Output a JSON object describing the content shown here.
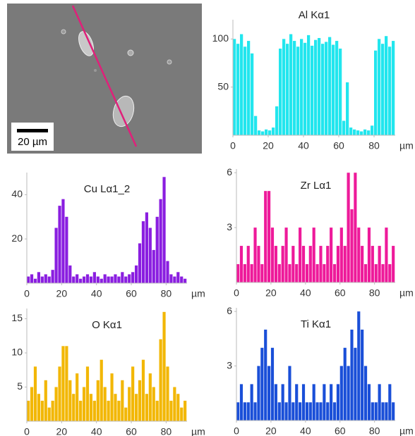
{
  "image": {
    "scale_label": "20 µm"
  },
  "chart_data": [
    {
      "type": "bar",
      "title": "Al Kα1",
      "color": "#22e6ee",
      "x_unit": "µm",
      "x": [
        0,
        2,
        4,
        6,
        8,
        10,
        12,
        14,
        16,
        18,
        20,
        22,
        24,
        26,
        28,
        30,
        32,
        34,
        36,
        38,
        40,
        42,
        44,
        46,
        48,
        50,
        52,
        54,
        56,
        58,
        60,
        62,
        64,
        66,
        68,
        70,
        72,
        74,
        76,
        78,
        80,
        82,
        84,
        86,
        88,
        90
      ],
      "values": [
        100,
        95,
        105,
        92,
        98,
        85,
        20,
        5,
        4,
        6,
        5,
        8,
        30,
        90,
        100,
        95,
        105,
        98,
        92,
        100,
        96,
        104,
        93,
        99,
        101,
        95,
        97,
        102,
        94,
        98,
        90,
        15,
        55,
        8,
        6,
        5,
        4,
        6,
        5,
        10,
        88,
        100,
        95,
        103,
        92,
        98
      ],
      "xlim": [
        0,
        92
      ],
      "xticks": [
        0,
        20,
        40,
        60,
        80
      ],
      "ylim": [
        0,
        120
      ],
      "yticks": [
        50,
        100
      ]
    },
    {
      "type": "bar",
      "title": "Cu Lα1_2",
      "color": "#8a1ee0",
      "x_unit": "µm",
      "x": [
        0,
        2,
        4,
        6,
        8,
        10,
        12,
        14,
        16,
        18,
        20,
        22,
        24,
        26,
        28,
        30,
        32,
        34,
        36,
        38,
        40,
        42,
        44,
        46,
        48,
        50,
        52,
        54,
        56,
        58,
        60,
        62,
        64,
        66,
        68,
        70,
        72,
        74,
        76,
        78,
        80,
        82,
        84,
        86,
        88,
        90
      ],
      "values": [
        3,
        4,
        2,
        5,
        3,
        4,
        3,
        6,
        25,
        35,
        38,
        30,
        8,
        3,
        4,
        2,
        3,
        4,
        3,
        5,
        3,
        2,
        4,
        3,
        3,
        4,
        3,
        5,
        3,
        4,
        5,
        8,
        18,
        28,
        32,
        25,
        15,
        30,
        38,
        48,
        10,
        4,
        3,
        5,
        3,
        2
      ],
      "xlim": [
        0,
        92
      ],
      "xticks": [
        0,
        20,
        40,
        60,
        80
      ],
      "ylim": [
        0,
        50
      ],
      "yticks": [
        20,
        40
      ]
    },
    {
      "type": "bar",
      "title": "Zr Lα1",
      "color": "#ee1a9a",
      "x_unit": "µm",
      "x": [
        0,
        2,
        4,
        6,
        8,
        10,
        12,
        14,
        16,
        18,
        20,
        22,
        24,
        26,
        28,
        30,
        32,
        34,
        36,
        38,
        40,
        42,
        44,
        46,
        48,
        50,
        52,
        54,
        56,
        58,
        60,
        62,
        64,
        66,
        68,
        70,
        72,
        74,
        76,
        78,
        80,
        82,
        84,
        86,
        88,
        90
      ],
      "values": [
        1,
        2,
        1,
        2,
        1,
        3,
        2,
        1,
        5,
        5,
        3,
        2,
        1,
        2,
        3,
        1,
        2,
        1,
        3,
        2,
        1,
        2,
        3,
        1,
        2,
        1,
        2,
        3,
        1,
        2,
        3,
        2,
        6,
        4,
        6,
        3,
        2,
        1,
        3,
        2,
        1,
        2,
        1,
        3,
        1,
        2
      ],
      "xlim": [
        0,
        92
      ],
      "xticks": [
        0,
        20,
        40,
        60,
        80
      ],
      "ylim": [
        0,
        6.2
      ],
      "yticks": [
        3,
        6
      ]
    },
    {
      "type": "bar",
      "title": "O Kα1",
      "color": "#f2b705",
      "x_unit": "µm",
      "x": [
        0,
        2,
        4,
        6,
        8,
        10,
        12,
        14,
        16,
        18,
        20,
        22,
        24,
        26,
        28,
        30,
        32,
        34,
        36,
        38,
        40,
        42,
        44,
        46,
        48,
        50,
        52,
        54,
        56,
        58,
        60,
        62,
        64,
        66,
        68,
        70,
        72,
        74,
        76,
        78,
        80,
        82,
        84,
        86,
        88,
        90
      ],
      "values": [
        3,
        5,
        8,
        4,
        3,
        6,
        2,
        3,
        5,
        8,
        11,
        11,
        6,
        4,
        7,
        3,
        5,
        8,
        4,
        3,
        6,
        9,
        5,
        3,
        7,
        4,
        3,
        6,
        2,
        5,
        8,
        4,
        6,
        9,
        4,
        7,
        5,
        3,
        12,
        16,
        8,
        3,
        5,
        4,
        2,
        3
      ],
      "xlim": [
        0,
        92
      ],
      "xticks": [
        0,
        20,
        40,
        60,
        80
      ],
      "ylim": [
        0,
        16.5
      ],
      "yticks": [
        5,
        10,
        15
      ]
    },
    {
      "type": "bar",
      "title": "Ti Kα1",
      "color": "#1a4fd8",
      "x_unit": "µm",
      "x": [
        0,
        2,
        4,
        6,
        8,
        10,
        12,
        14,
        16,
        18,
        20,
        22,
        24,
        26,
        28,
        30,
        32,
        34,
        36,
        38,
        40,
        42,
        44,
        46,
        48,
        50,
        52,
        54,
        56,
        58,
        60,
        62,
        64,
        66,
        68,
        70,
        72,
        74,
        76,
        78,
        80,
        82,
        84,
        86,
        88,
        90
      ],
      "values": [
        1,
        2,
        1,
        1,
        2,
        1,
        3,
        4,
        5,
        3,
        4,
        2,
        1,
        2,
        1,
        3,
        1,
        2,
        1,
        2,
        1,
        1,
        2,
        1,
        1,
        2,
        1,
        2,
        1,
        2,
        3,
        4,
        3,
        5,
        4,
        6,
        5,
        3,
        2,
        1,
        1,
        2,
        1,
        1,
        2,
        1
      ],
      "xlim": [
        0,
        92
      ],
      "xticks": [
        0,
        20,
        40,
        60,
        80
      ],
      "ylim": [
        0,
        6.2
      ],
      "yticks": [
        3,
        6
      ]
    }
  ]
}
